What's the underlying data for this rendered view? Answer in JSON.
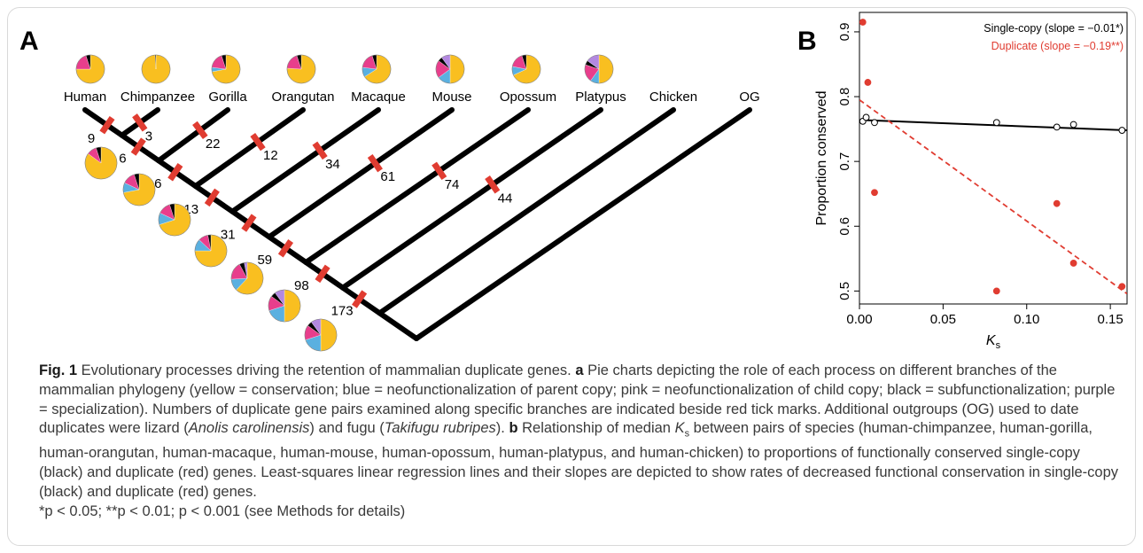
{
  "figure": {
    "panel_a_label": "A",
    "panel_b_label": "B"
  },
  "tree": {
    "colors": {
      "conservation": "#f9bf20",
      "neo_parent": "#5ab0e0",
      "neo_child": "#e83e8c",
      "subfunctionalization": "#000000",
      "specialization": "#b388e0",
      "tick": "#e03c31",
      "branch": "#000000"
    },
    "tips": [
      {
        "label": "Human",
        "pie": [
          0.75,
          0.0,
          0.2,
          0.05,
          0.0
        ]
      },
      {
        "label": "Chimpanzee",
        "pie": [
          0.99,
          0.0,
          0.0,
          0.01,
          0.0
        ]
      },
      {
        "label": "Gorilla",
        "pie": [
          0.72,
          0.05,
          0.18,
          0.05,
          0.0
        ]
      },
      {
        "label": "Orangutan",
        "pie": [
          0.76,
          0.0,
          0.19,
          0.05,
          0.0
        ]
      },
      {
        "label": "Macaque",
        "pie": [
          0.66,
          0.11,
          0.18,
          0.05,
          0.0
        ]
      },
      {
        "label": "Mouse",
        "pie": [
          0.5,
          0.15,
          0.2,
          0.05,
          0.1
        ]
      },
      {
        "label": "Opossum",
        "pie": [
          0.68,
          0.1,
          0.17,
          0.05,
          0.0
        ]
      },
      {
        "label": "Platypus",
        "pie": [
          0.5,
          0.1,
          0.2,
          0.05,
          0.15
        ]
      },
      {
        "label": "Chicken",
        "pie": null
      },
      {
        "label": "OG",
        "pie": null
      }
    ],
    "tip_counts": [
      "9",
      "3",
      "22",
      "12",
      "34",
      "61",
      "74",
      "44"
    ],
    "internal_counts": [
      "6",
      "16",
      "13",
      "31",
      "59",
      "98",
      "173"
    ],
    "internal_pies": [
      [
        0.85,
        0.0,
        0.1,
        0.05,
        0.0
      ],
      [
        0.72,
        0.1,
        0.13,
        0.05,
        0.0
      ],
      [
        0.7,
        0.12,
        0.13,
        0.05,
        0.0
      ],
      [
        0.75,
        0.12,
        0.1,
        0.03,
        0.0
      ],
      [
        0.62,
        0.12,
        0.18,
        0.05,
        0.03
      ],
      [
        0.5,
        0.2,
        0.15,
        0.05,
        0.1
      ],
      [
        0.5,
        0.2,
        0.15,
        0.05,
        0.1
      ]
    ]
  },
  "chart_data": {
    "type": "scatter",
    "xlabel": "K",
    "xlabel_sub": "s",
    "ylabel": "Proportion conserved",
    "xlim": [
      0,
      0.16
    ],
    "ylim": [
      0.48,
      0.93
    ],
    "x_ticks": [
      "0.00",
      "0.05",
      "0.10",
      "0.15"
    ],
    "x_tick_values": [
      0,
      0.05,
      0.1,
      0.15
    ],
    "y_ticks": [
      "0.5",
      "0.6",
      "0.7",
      "0.8",
      "0.9"
    ],
    "y_tick_values": [
      0.5,
      0.6,
      0.7,
      0.8,
      0.9
    ],
    "series": [
      {
        "name": "Single-copy (slope = −0.01*)",
        "color": "#000000",
        "marker": "open-circle",
        "x": [
          0.002,
          0.004,
          0.009,
          0.082,
          0.118,
          0.128,
          0.157
        ],
        "y": [
          0.762,
          0.768,
          0.76,
          0.76,
          0.753,
          0.757,
          0.748
        ],
        "fit": {
          "intercept": 0.764,
          "slope": -0.1
        }
      },
      {
        "name": "Duplicate (slope = −0.19**)",
        "color": "#e03c31",
        "marker": "filled-circle",
        "x": [
          0.002,
          0.005,
          0.009,
          0.082,
          0.118,
          0.128,
          0.157
        ],
        "y": [
          0.915,
          0.822,
          0.652,
          0.5,
          0.635,
          0.543,
          0.507
        ],
        "fit": {
          "intercept": 0.795,
          "slope": -1.87
        }
      }
    ]
  },
  "caption": {
    "fig_label": "Fig. 1",
    "title": " Evolutionary processes driving the retention of mammalian duplicate genes. ",
    "a_label": "a",
    "a_text": " Pie charts depicting the role of each process on different branches of the mammalian phylogeny (yellow = conservation; blue = neofunctionalization of parent copy; pink = neofunctionalization of child copy; black = subfunctionalization; purple = specialization). Numbers of duplicate gene pairs examined along specific branches are indicated beside red tick marks. Additional outgroups (OG) used to date duplicates were lizard (",
    "lizard": "Anolis carolinensis",
    "a_mid": ") and fugu (",
    "fugu": "Takifugu rubripes",
    "a_end": "). ",
    "b_label": "b",
    "b_text1": " Relationship of median ",
    "ks_k": "K",
    "ks_s": "s",
    "b_text2": " between pairs of species (human-chimpanzee, human-gorilla, human-orangutan, human-macaque, human-mouse, human-opossum, human-platypus, and human-chicken) to proportions of functionally conserved single-copy (black) and duplicate (red) genes. Least-squares linear regression lines and their slopes are depicted to show rates of decreased functional conservation in single-copy (black) and duplicate (red) genes.",
    "stats": "*p < 0.05; **p < 0.01; p < 0.001 (see Methods for details)"
  }
}
